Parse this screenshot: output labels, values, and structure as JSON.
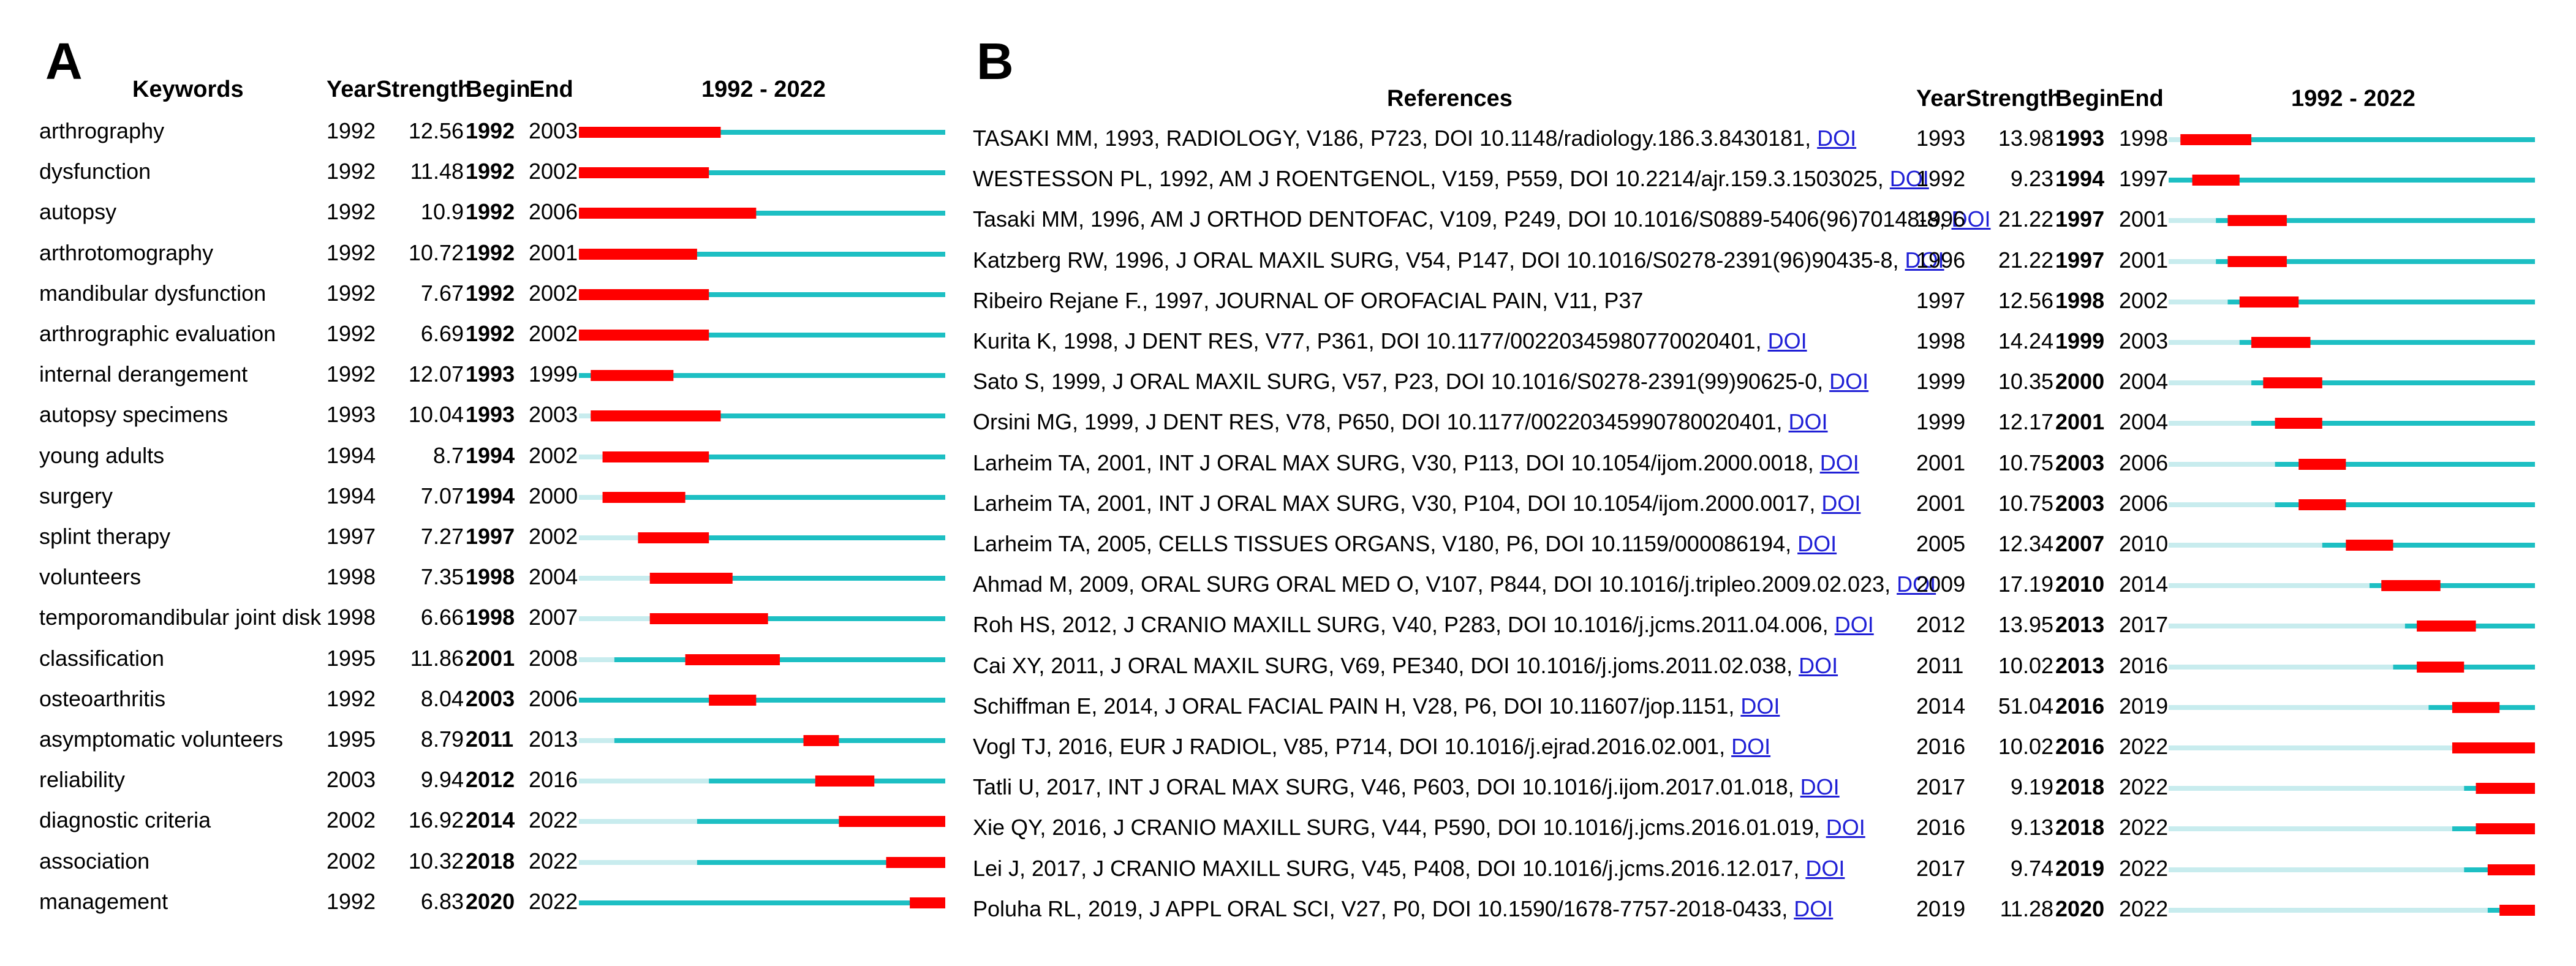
{
  "colors": {
    "pre": "#c8ecee",
    "active": "#1dbfc3",
    "burst": "#ff0000",
    "link": "#1f1fd6"
  },
  "chart_data": [
    {
      "type": "timeline-burst",
      "panel": "A",
      "columns": {
        "item": "Keywords",
        "year": "Year",
        "strength": "Strength",
        "begin": "Begin",
        "end": "End"
      },
      "period_label": "1992 - 2022",
      "period": [
        1992,
        2022
      ],
      "rows": [
        {
          "label": "arthrography",
          "year": 1992,
          "strength": "12.56",
          "begin": 1992,
          "end": 2003
        },
        {
          "label": "dysfunction",
          "year": 1992,
          "strength": "11.48",
          "begin": 1992,
          "end": 2002
        },
        {
          "label": "autopsy",
          "year": 1992,
          "strength": "10.9",
          "begin": 1992,
          "end": 2006
        },
        {
          "label": "arthrotomography",
          "year": 1992,
          "strength": "10.72",
          "begin": 1992,
          "end": 2001
        },
        {
          "label": "mandibular dysfunction",
          "year": 1992,
          "strength": "7.67",
          "begin": 1992,
          "end": 2002
        },
        {
          "label": "arthrographic evaluation",
          "year": 1992,
          "strength": "6.69",
          "begin": 1992,
          "end": 2002
        },
        {
          "label": "internal derangement",
          "year": 1992,
          "strength": "12.07",
          "begin": 1993,
          "end": 1999
        },
        {
          "label": "autopsy specimens",
          "year": 1993,
          "strength": "10.04",
          "begin": 1993,
          "end": 2003
        },
        {
          "label": "young adults",
          "year": 1994,
          "strength": "8.7",
          "begin": 1994,
          "end": 2002
        },
        {
          "label": "surgery",
          "year": 1994,
          "strength": "7.07",
          "begin": 1994,
          "end": 2000
        },
        {
          "label": "splint therapy",
          "year": 1997,
          "strength": "7.27",
          "begin": 1997,
          "end": 2002
        },
        {
          "label": "volunteers",
          "year": 1998,
          "strength": "7.35",
          "begin": 1998,
          "end": 2004
        },
        {
          "label": "temporomandibular joint disk",
          "year": 1998,
          "strength": "6.66",
          "begin": 1998,
          "end": 2007
        },
        {
          "label": "classification",
          "year": 1995,
          "strength": "11.86",
          "begin": 2001,
          "end": 2008
        },
        {
          "label": "osteoarthritis",
          "year": 1992,
          "strength": "8.04",
          "begin": 2003,
          "end": 2006
        },
        {
          "label": "asymptomatic volunteers",
          "year": 1995,
          "strength": "8.79",
          "begin": 2011,
          "end": 2013
        },
        {
          "label": "reliability",
          "year": 2003,
          "strength": "9.94",
          "begin": 2012,
          "end": 2016
        },
        {
          "label": "diagnostic criteria",
          "year": 2002,
          "strength": "16.92",
          "begin": 2014,
          "end": 2022
        },
        {
          "label": "association",
          "year": 2002,
          "strength": "10.32",
          "begin": 2018,
          "end": 2022
        },
        {
          "label": "management",
          "year": 1992,
          "strength": "6.83",
          "begin": 2020,
          "end": 2022
        }
      ]
    },
    {
      "type": "timeline-burst",
      "panel": "B",
      "columns": {
        "item": "References",
        "year": "Year",
        "strength": "Strength",
        "begin": "Begin",
        "end": "End"
      },
      "period_label": "1992 - 2022",
      "period": [
        1992,
        2022
      ],
      "link_label": "DOI",
      "rows": [
        {
          "label": "TASAKI MM, 1993, RADIOLOGY, V186, P723, DOI 10.1148/radiology.186.3.8430181,",
          "doi": true,
          "year": 1993,
          "strength": "13.98",
          "begin": 1993,
          "end": 1998
        },
        {
          "label": "WESTESSON PL, 1992, AM J ROENTGENOL, V159, P559, DOI 10.2214/ajr.159.3.1503025,",
          "doi": true,
          "year": 1992,
          "strength": "9.23",
          "begin": 1994,
          "end": 1997
        },
        {
          "label": "Tasaki MM, 1996, AM J ORTHOD DENTOFAC, V109, P249, DOI 10.1016/S0889-5406(96)70148-8,",
          "doi": true,
          "year": 1996,
          "strength": "21.22",
          "begin": 1997,
          "end": 2001
        },
        {
          "label": "Katzberg RW, 1996, J ORAL MAXIL SURG, V54, P147, DOI 10.1016/S0278-2391(96)90435-8,",
          "doi": true,
          "year": 1996,
          "strength": "21.22",
          "begin": 1997,
          "end": 2001
        },
        {
          "label": "Ribeiro Rejane F., 1997, JOURNAL OF OROFACIAL PAIN, V11, P37",
          "doi": false,
          "year": 1997,
          "strength": "12.56",
          "begin": 1998,
          "end": 2002
        },
        {
          "label": "Kurita K, 1998, J DENT RES, V77, P361, DOI 10.1177/00220345980770020401,",
          "doi": true,
          "year": 1998,
          "strength": "14.24",
          "begin": 1999,
          "end": 2003
        },
        {
          "label": "Sato S, 1999, J ORAL MAXIL SURG, V57, P23, DOI 10.1016/S0278-2391(99)90625-0,",
          "doi": true,
          "year": 1999,
          "strength": "10.35",
          "begin": 2000,
          "end": 2004
        },
        {
          "label": "Orsini MG, 1999, J DENT RES, V78, P650, DOI 10.1177/00220345990780020401,",
          "doi": true,
          "year": 1999,
          "strength": "12.17",
          "begin": 2001,
          "end": 2004
        },
        {
          "label": "Larheim TA, 2001, INT J ORAL MAX SURG, V30, P113, DOI 10.1054/ijom.2000.0018,",
          "doi": true,
          "year": 2001,
          "strength": "10.75",
          "begin": 2003,
          "end": 2006
        },
        {
          "label": "Larheim TA, 2001, INT J ORAL MAX SURG, V30, P104, DOI 10.1054/ijom.2000.0017,",
          "doi": true,
          "year": 2001,
          "strength": "10.75",
          "begin": 2003,
          "end": 2006
        },
        {
          "label": "Larheim TA, 2005, CELLS TISSUES ORGANS, V180, P6, DOI 10.1159/000086194,",
          "doi": true,
          "year": 2005,
          "strength": "12.34",
          "begin": 2007,
          "end": 2010
        },
        {
          "label": "Ahmad M, 2009, ORAL SURG ORAL MED O, V107, P844, DOI 10.1016/j.tripleo.2009.02.023,",
          "doi": true,
          "year": 2009,
          "strength": "17.19",
          "begin": 2010,
          "end": 2014
        },
        {
          "label": "Roh HS, 2012, J CRANIO MAXILL SURG, V40, P283, DOI 10.1016/j.jcms.2011.04.006,",
          "doi": true,
          "year": 2012,
          "strength": "13.95",
          "begin": 2013,
          "end": 2017
        },
        {
          "label": "Cai XY, 2011, J ORAL MAXIL SURG, V69, PE340, DOI 10.1016/j.joms.2011.02.038,",
          "doi": true,
          "year": 2011,
          "strength": "10.02",
          "begin": 2013,
          "end": 2016
        },
        {
          "label": "Schiffman E, 2014, J ORAL FACIAL PAIN H, V28, P6, DOI 10.11607/jop.1151,",
          "doi": true,
          "year": 2014,
          "strength": "51.04",
          "begin": 2016,
          "end": 2019
        },
        {
          "label": "Vogl TJ, 2016, EUR J RADIOL, V85, P714, DOI 10.1016/j.ejrad.2016.02.001,",
          "doi": true,
          "year": 2016,
          "strength": "10.02",
          "begin": 2016,
          "end": 2022
        },
        {
          "label": "Tatli U, 2017, INT J ORAL MAX SURG, V46, P603, DOI 10.1016/j.ijom.2017.01.018,",
          "doi": true,
          "year": 2017,
          "strength": "9.19",
          "begin": 2018,
          "end": 2022
        },
        {
          "label": "Xie QY, 2016, J CRANIO MAXILL SURG, V44, P590, DOI 10.1016/j.jcms.2016.01.019,",
          "doi": true,
          "year": 2016,
          "strength": "9.13",
          "begin": 2018,
          "end": 2022
        },
        {
          "label": "Lei J, 2017, J CRANIO MAXILL SURG, V45, P408, DOI 10.1016/j.jcms.2016.12.017,",
          "doi": true,
          "year": 2017,
          "strength": "9.74",
          "begin": 2019,
          "end": 2022
        },
        {
          "label": "Poluha RL, 2019, J APPL ORAL SCI, V27, P0, DOI 10.1590/1678-7757-2018-0433,",
          "doi": true,
          "year": 2019,
          "strength": "11.28",
          "begin": 2020,
          "end": 2022
        }
      ]
    }
  ]
}
